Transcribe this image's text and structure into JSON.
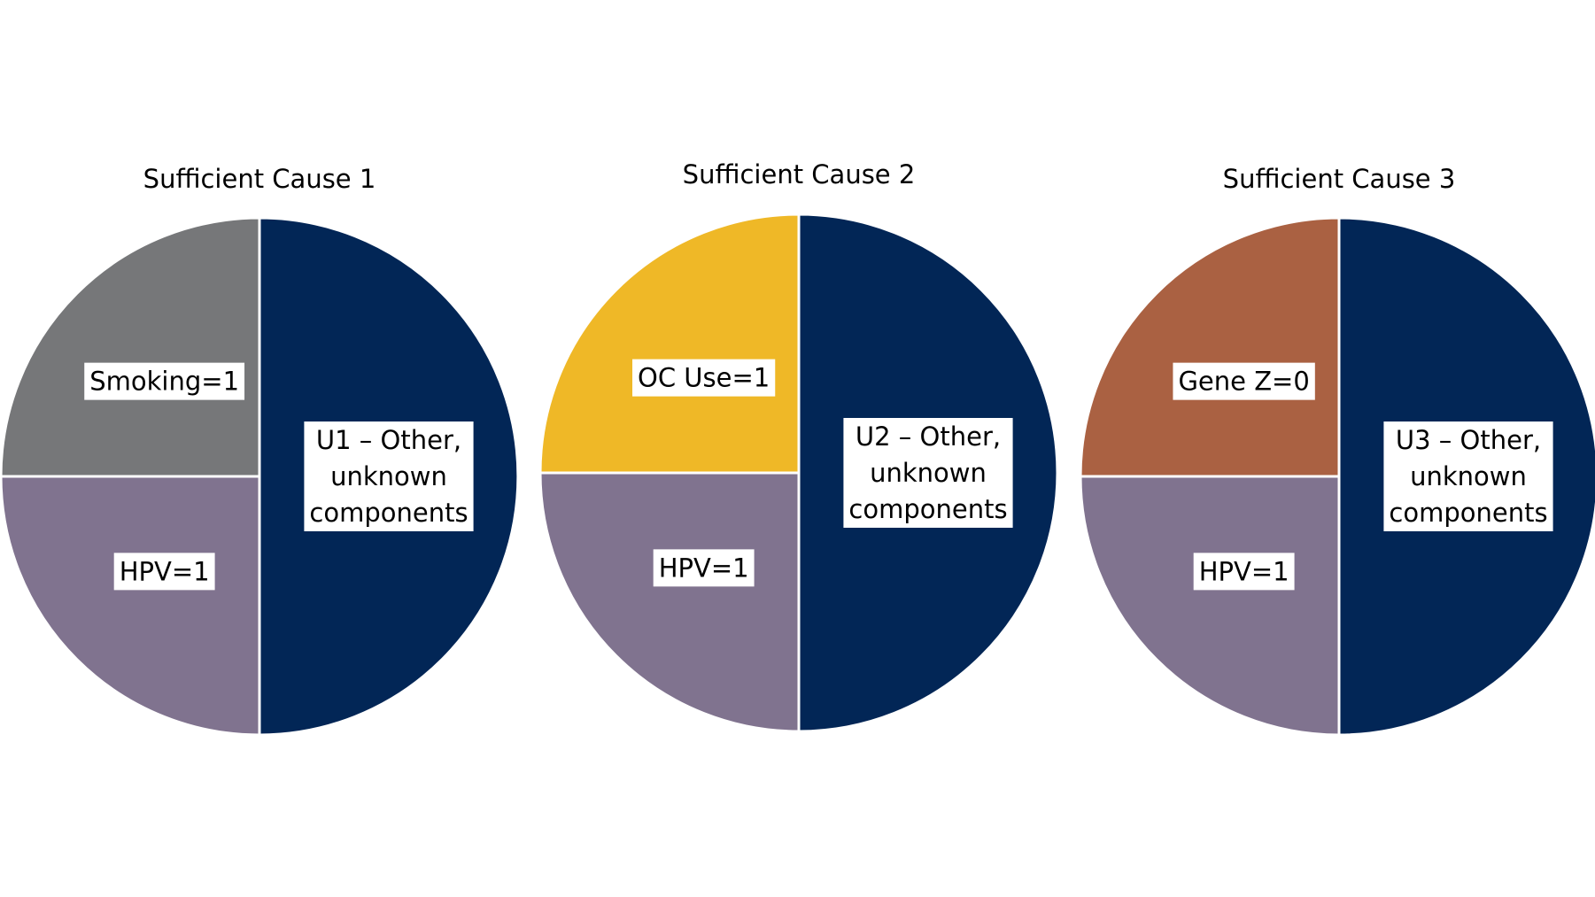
{
  "chart_data": [
    {
      "type": "pie",
      "title": "Sufficient Cause 1",
      "slices": [
        {
          "label": [
            "U1 – Other,",
            "unknown",
            "components"
          ],
          "value": 50,
          "color": "#022656"
        },
        {
          "label": [
            "HPV=1"
          ],
          "value": 25,
          "color": "#80738f"
        },
        {
          "label": [
            "Smoking=1"
          ],
          "value": 25,
          "color": "#767779"
        }
      ]
    },
    {
      "type": "pie",
      "title": "Sufficient Cause 2",
      "slices": [
        {
          "label": [
            "U2 – Other,",
            "unknown",
            "components"
          ],
          "value": 50,
          "color": "#022656"
        },
        {
          "label": [
            "HPV=1"
          ],
          "value": 25,
          "color": "#80738f"
        },
        {
          "label": [
            "OC Use=1"
          ],
          "value": 25,
          "color": "#efb827"
        }
      ]
    },
    {
      "type": "pie",
      "title": "Sufficient Cause 3",
      "slices": [
        {
          "label": [
            "U3 – Other,",
            "unknown",
            "components"
          ],
          "value": 50,
          "color": "#022656"
        },
        {
          "label": [
            "HPV=1"
          ],
          "value": 25,
          "color": "#80738f"
        },
        {
          "label": [
            "Gene Z=0"
          ],
          "value": 25,
          "color": "#aa6142"
        }
      ]
    }
  ]
}
